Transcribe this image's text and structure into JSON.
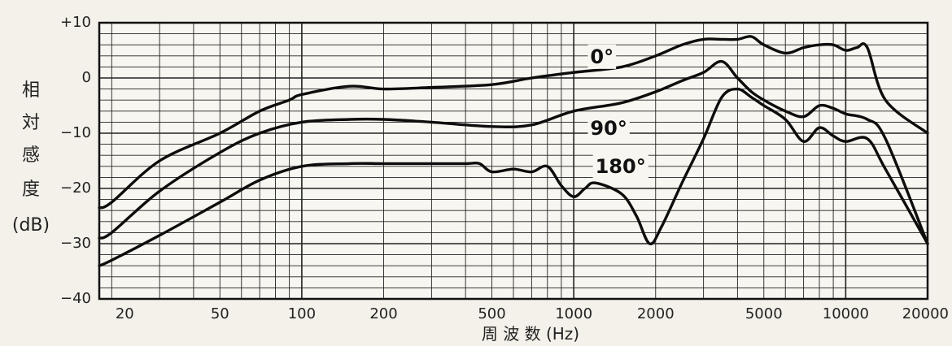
{
  "chart_data": {
    "type": "line",
    "ylabel": [
      "相",
      "対",
      "感",
      "度",
      "(dB)"
    ],
    "xlabel": "周 波 数 (Hz)",
    "xscale": "log",
    "xlim": [
      18,
      20000
    ],
    "ylim": [
      -40,
      10
    ],
    "grid": true,
    "xticks": [
      {
        "value": 20,
        "label": "20"
      },
      {
        "value": 50,
        "label": "50"
      },
      {
        "value": 100,
        "label": "100"
      },
      {
        "value": 200,
        "label": "200"
      },
      {
        "value": 500,
        "label": "500"
      },
      {
        "value": 1000,
        "label": "1000"
      },
      {
        "value": 2000,
        "label": "2000"
      },
      {
        "value": 5000,
        "label": "5000"
      },
      {
        "value": 10000,
        "label": "10000"
      },
      {
        "value": 20000,
        "label": "20000"
      }
    ],
    "yticks": [
      {
        "value": 10,
        "label": "+10"
      },
      {
        "value": 0,
        "label": "0"
      },
      {
        "value": -10,
        "label": "−10"
      },
      {
        "value": -20,
        "label": "−20"
      },
      {
        "value": -30,
        "label": "−30"
      },
      {
        "value": -40,
        "label": "−40"
      }
    ],
    "series": [
      {
        "name": "0°",
        "label_at": {
          "x": 1150,
          "y": 3.7
        },
        "x": [
          18,
          20,
          30,
          50,
          70,
          90,
          100,
          150,
          200,
          300,
          500,
          700,
          1000,
          1500,
          2000,
          2500,
          3000,
          3500,
          4000,
          4500,
          5000,
          6000,
          7000,
          8000,
          9000,
          10000,
          11000,
          12000,
          14000,
          20000
        ],
        "y": [
          -23.5,
          -22.5,
          -15,
          -10,
          -6,
          -4,
          -3,
          -1.5,
          -2,
          -1.7,
          -1.2,
          0,
          1,
          2,
          4,
          6,
          7,
          7,
          7,
          7.5,
          6,
          4.5,
          5.5,
          6,
          6,
          5,
          5.5,
          5.5,
          -4,
          -10
        ]
      },
      {
        "name": "90°",
        "label_at": {
          "x": 1150,
          "y": -9.3
        },
        "x": [
          18,
          20,
          30,
          50,
          70,
          100,
          150,
          200,
          300,
          500,
          700,
          1000,
          1500,
          2000,
          2500,
          3000,
          3500,
          4000,
          4500,
          5000,
          6000,
          7000,
          8000,
          9000,
          10000,
          12000,
          14000,
          20000
        ],
        "y": [
          -29,
          -28,
          -20.5,
          -13.5,
          -10,
          -8,
          -7.5,
          -7.5,
          -8,
          -8.8,
          -8.5,
          -6,
          -4.5,
          -2.5,
          -0.5,
          1,
          3,
          0,
          -2.5,
          -4,
          -6,
          -7,
          -5,
          -5.5,
          -6.5,
          -7.5,
          -11,
          -30
        ]
      },
      {
        "name": "180°",
        "label_at": {
          "x": 1200,
          "y": -16.2
        },
        "x": [
          18,
          20,
          30,
          50,
          70,
          100,
          150,
          200,
          300,
          400,
          450,
          500,
          600,
          700,
          800,
          900,
          1000,
          1100,
          1200,
          1500,
          1700,
          1900,
          2100,
          2500,
          3000,
          3500,
          4000,
          4500,
          5000,
          6000,
          7000,
          8000,
          9000,
          10000,
          12000,
          14000,
          20000
        ],
        "y": [
          -34,
          -33,
          -28.5,
          -22.5,
          -18.5,
          -16,
          -15.5,
          -15.5,
          -15.5,
          -15.5,
          -15.5,
          -17,
          -16.5,
          -17,
          -16,
          -19.5,
          -21.5,
          -20,
          -19,
          -21,
          -25,
          -30,
          -27,
          -19,
          -11,
          -3.5,
          -2,
          -3.5,
          -5,
          -7.5,
          -11.5,
          -9,
          -10.5,
          -11.5,
          -11,
          -16.5,
          -30
        ]
      }
    ]
  }
}
